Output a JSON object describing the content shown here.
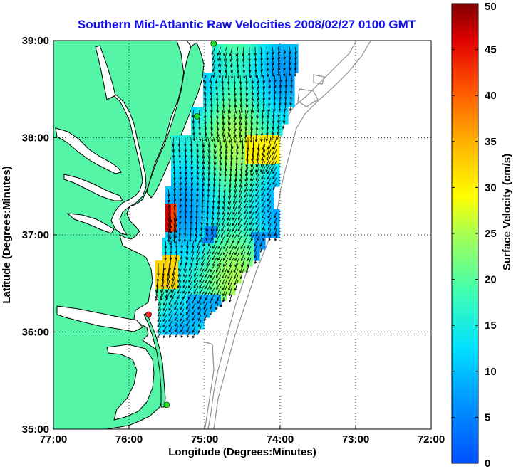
{
  "title": "Southern Mid-Atlantic Raw Velocities 2008/02/27 0100 GMT",
  "map": {
    "xlabel": "Longitude (Degrees:Minutes)",
    "ylabel": "Latitude (Degrees:Minutes)",
    "x_ticks": [
      {
        "value": -77,
        "label": "77:00"
      },
      {
        "value": -76,
        "label": "76:00"
      },
      {
        "value": -75,
        "label": "75:00"
      },
      {
        "value": -74,
        "label": "74:00"
      },
      {
        "value": -73,
        "label": "73:00"
      },
      {
        "value": -72,
        "label": "72:00"
      }
    ],
    "y_ticks": [
      {
        "value": 39,
        "label": "39:00"
      },
      {
        "value": 38,
        "label": "38:00"
      },
      {
        "value": 37,
        "label": "37:00"
      },
      {
        "value": 36,
        "label": "36:00"
      },
      {
        "value": 35,
        "label": "35:00"
      }
    ],
    "xlim": [
      -77,
      -72
    ],
    "ylim": [
      35,
      39
    ],
    "grid": "dotted",
    "land_color": "#55f5a8",
    "coast_color": "#000000",
    "bathymetry_color": "#909090",
    "stations": [
      {
        "lon": -74.88,
        "lat": 38.97,
        "color": "#22dd22"
      },
      {
        "lon": -75.1,
        "lat": 38.22,
        "color": "#22dd22"
      },
      {
        "lon": -75.74,
        "lat": 36.18,
        "color": "#ff2020"
      },
      {
        "lon": -75.5,
        "lat": 35.25,
        "color": "#22dd22"
      }
    ]
  },
  "colorbar": {
    "label": "Surface Velocity (cm/s)",
    "range": [
      0,
      50
    ],
    "ticks": [
      0,
      5,
      10,
      15,
      20,
      25,
      30,
      35,
      40,
      45,
      50
    ],
    "tick_labels": [
      "0",
      "5",
      "10",
      "15",
      "20",
      "25",
      "30",
      "35",
      "40",
      "45",
      "50"
    ],
    "colormap": "jet"
  }
}
